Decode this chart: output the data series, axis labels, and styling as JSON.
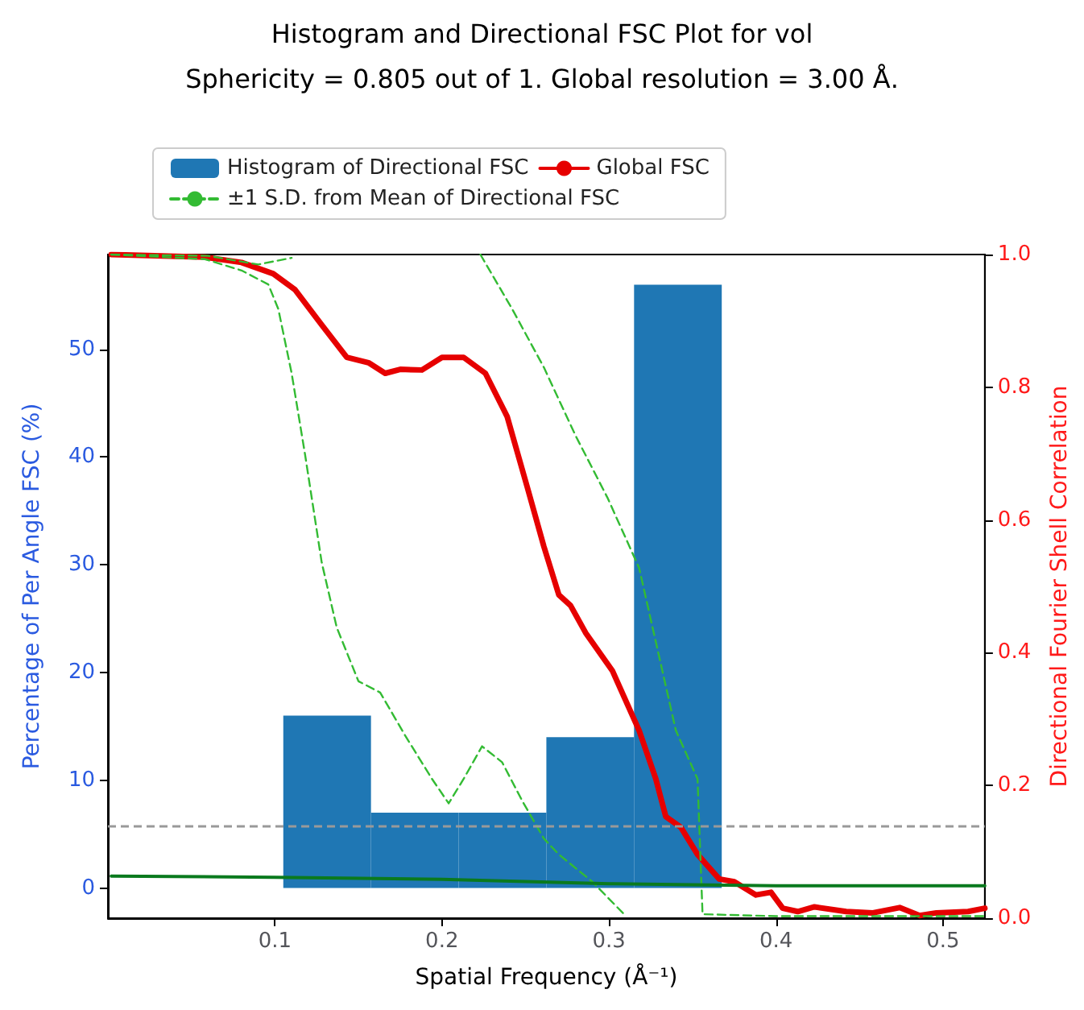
{
  "chart_data": {
    "type": "histogram",
    "title": "Histogram and Directional FSC Plot for vol",
    "subtitle": "Sphericity = 0.805 out of 1. Global resolution = 3.00 Å.",
    "xlabel": "Spatial Frequency (Å⁻¹)",
    "ylabel": "Percentage of Per Angle FSC (%)",
    "y2label": "Directional Fourier Shell Correlation",
    "xlim": [
      0,
      0.525
    ],
    "xticks": [
      0.1,
      0.2,
      0.3,
      0.4,
      0.5
    ],
    "ylim": [
      -2.8,
      58.8
    ],
    "yticks": [
      0,
      10,
      20,
      30,
      40,
      50
    ],
    "y2lim": [
      0,
      1
    ],
    "y2ticks": [
      {
        "value": 0,
        "label": "0.0"
      },
      {
        "value": 0.2,
        "label": "0.2"
      },
      {
        "value": 0.4,
        "label": "0.4"
      },
      {
        "value": 0.6,
        "label": "0.6"
      },
      {
        "value": 0.8,
        "label": "0.8"
      },
      {
        "value": 1,
        "label": "1.0"
      }
    ],
    "grid": false,
    "legend": "top",
    "marker": "none",
    "ref_lines": [
      {
        "axis": "y2",
        "value": 0.143,
        "color": "#999999",
        "line_style": "dashed"
      }
    ],
    "series": [
      {
        "name": "Histogram of Directional FSC",
        "color": "#1f77b4",
        "bins": [
          0,
          0.0525,
          0.105,
          0.1575,
          0.21,
          0.2625,
          0.315,
          0.3675,
          0.42,
          0.4725,
          0.525
        ],
        "values": [
          0,
          0,
          16,
          7,
          7,
          14,
          56,
          0,
          0,
          0
        ]
      },
      {
        "type": "line",
        "name": "Global FSC",
        "color": "#e60000",
        "axis": "y2",
        "line_style": "solid",
        "x": [
          0.002,
          0.058,
          0.08,
          0.099,
          0.112,
          0.128,
          0.143,
          0.156,
          0.166,
          0.175,
          0.188,
          0.2,
          0.213,
          0.226,
          0.239,
          0.251,
          0.261,
          0.27,
          0.277,
          0.286,
          0.302,
          0.318,
          0.328,
          0.334,
          0.343,
          0.353,
          0.366,
          0.375,
          0.388,
          0.397,
          0.404,
          0.413,
          0.423,
          0.442,
          0.458,
          0.474,
          0.486,
          0.496,
          0.515,
          0.525
        ],
        "values": [
          1.0,
          0.996,
          0.988,
          0.971,
          0.947,
          0.894,
          0.845,
          0.837,
          0.821,
          0.827,
          0.826,
          0.845,
          0.845,
          0.821,
          0.756,
          0.65,
          0.56,
          0.487,
          0.471,
          0.43,
          0.373,
          0.283,
          0.21,
          0.153,
          0.137,
          0.096,
          0.059,
          0.055,
          0.035,
          0.039,
          0.015,
          0.01,
          0.017,
          0.01,
          0.008,
          0.016,
          0.004,
          0.008,
          0.01,
          0.015
        ]
      },
      {
        "type": "line",
        "name": "±1 S.D. from Mean of Directional FSC",
        "color": "#33bb33",
        "axis": "y2",
        "line_style": "dashed",
        "x": [
          0.002,
          0.06,
          0.09,
          0.11,
          0.12,
          0.22,
          0.223,
          0.242,
          0.261,
          0.28,
          0.299,
          0.318,
          0.34,
          0.353,
          0.356,
          0.4,
          0.45,
          0.525
        ],
        "values": [
          1.0,
          0.998,
          0.985,
          0.995,
          null,
          null,
          1.0,
          0.918,
          0.83,
          0.727,
          0.634,
          0.528,
          0.283,
          0.21,
          0.006,
          0.003,
          0.003,
          0.003
        ]
      },
      {
        "type": "line",
        "color": "#33bb33",
        "axis": "y2",
        "line_style": "dashed",
        "x": [
          0.002,
          0.058,
          0.08,
          0.096,
          0.102,
          0.11,
          0.118,
          0.128,
          0.137,
          0.15,
          0.163,
          0.178,
          0.194,
          0.204,
          0.213,
          0.224,
          0.236,
          0.248,
          0.261,
          0.27,
          0.29,
          0.309
        ],
        "values": [
          1.0,
          0.993,
          0.976,
          0.955,
          0.918,
          0.821,
          0.699,
          0.536,
          0.438,
          0.357,
          0.34,
          0.275,
          0.21,
          0.173,
          0.21,
          0.259,
          0.235,
          0.177,
          0.12,
          0.096,
          0.055,
          0.006
        ]
      },
      {
        "type": "line",
        "color": "#0a7a1e",
        "line_style": "solid",
        "x": [
          0.002,
          0.1,
          0.2,
          0.25,
          0.3,
          0.35,
          0.4,
          0.525
        ],
        "values": [
          1.1,
          1.0,
          0.8,
          0.6,
          0.4,
          0.3,
          0.2,
          0.2
        ]
      }
    ]
  }
}
